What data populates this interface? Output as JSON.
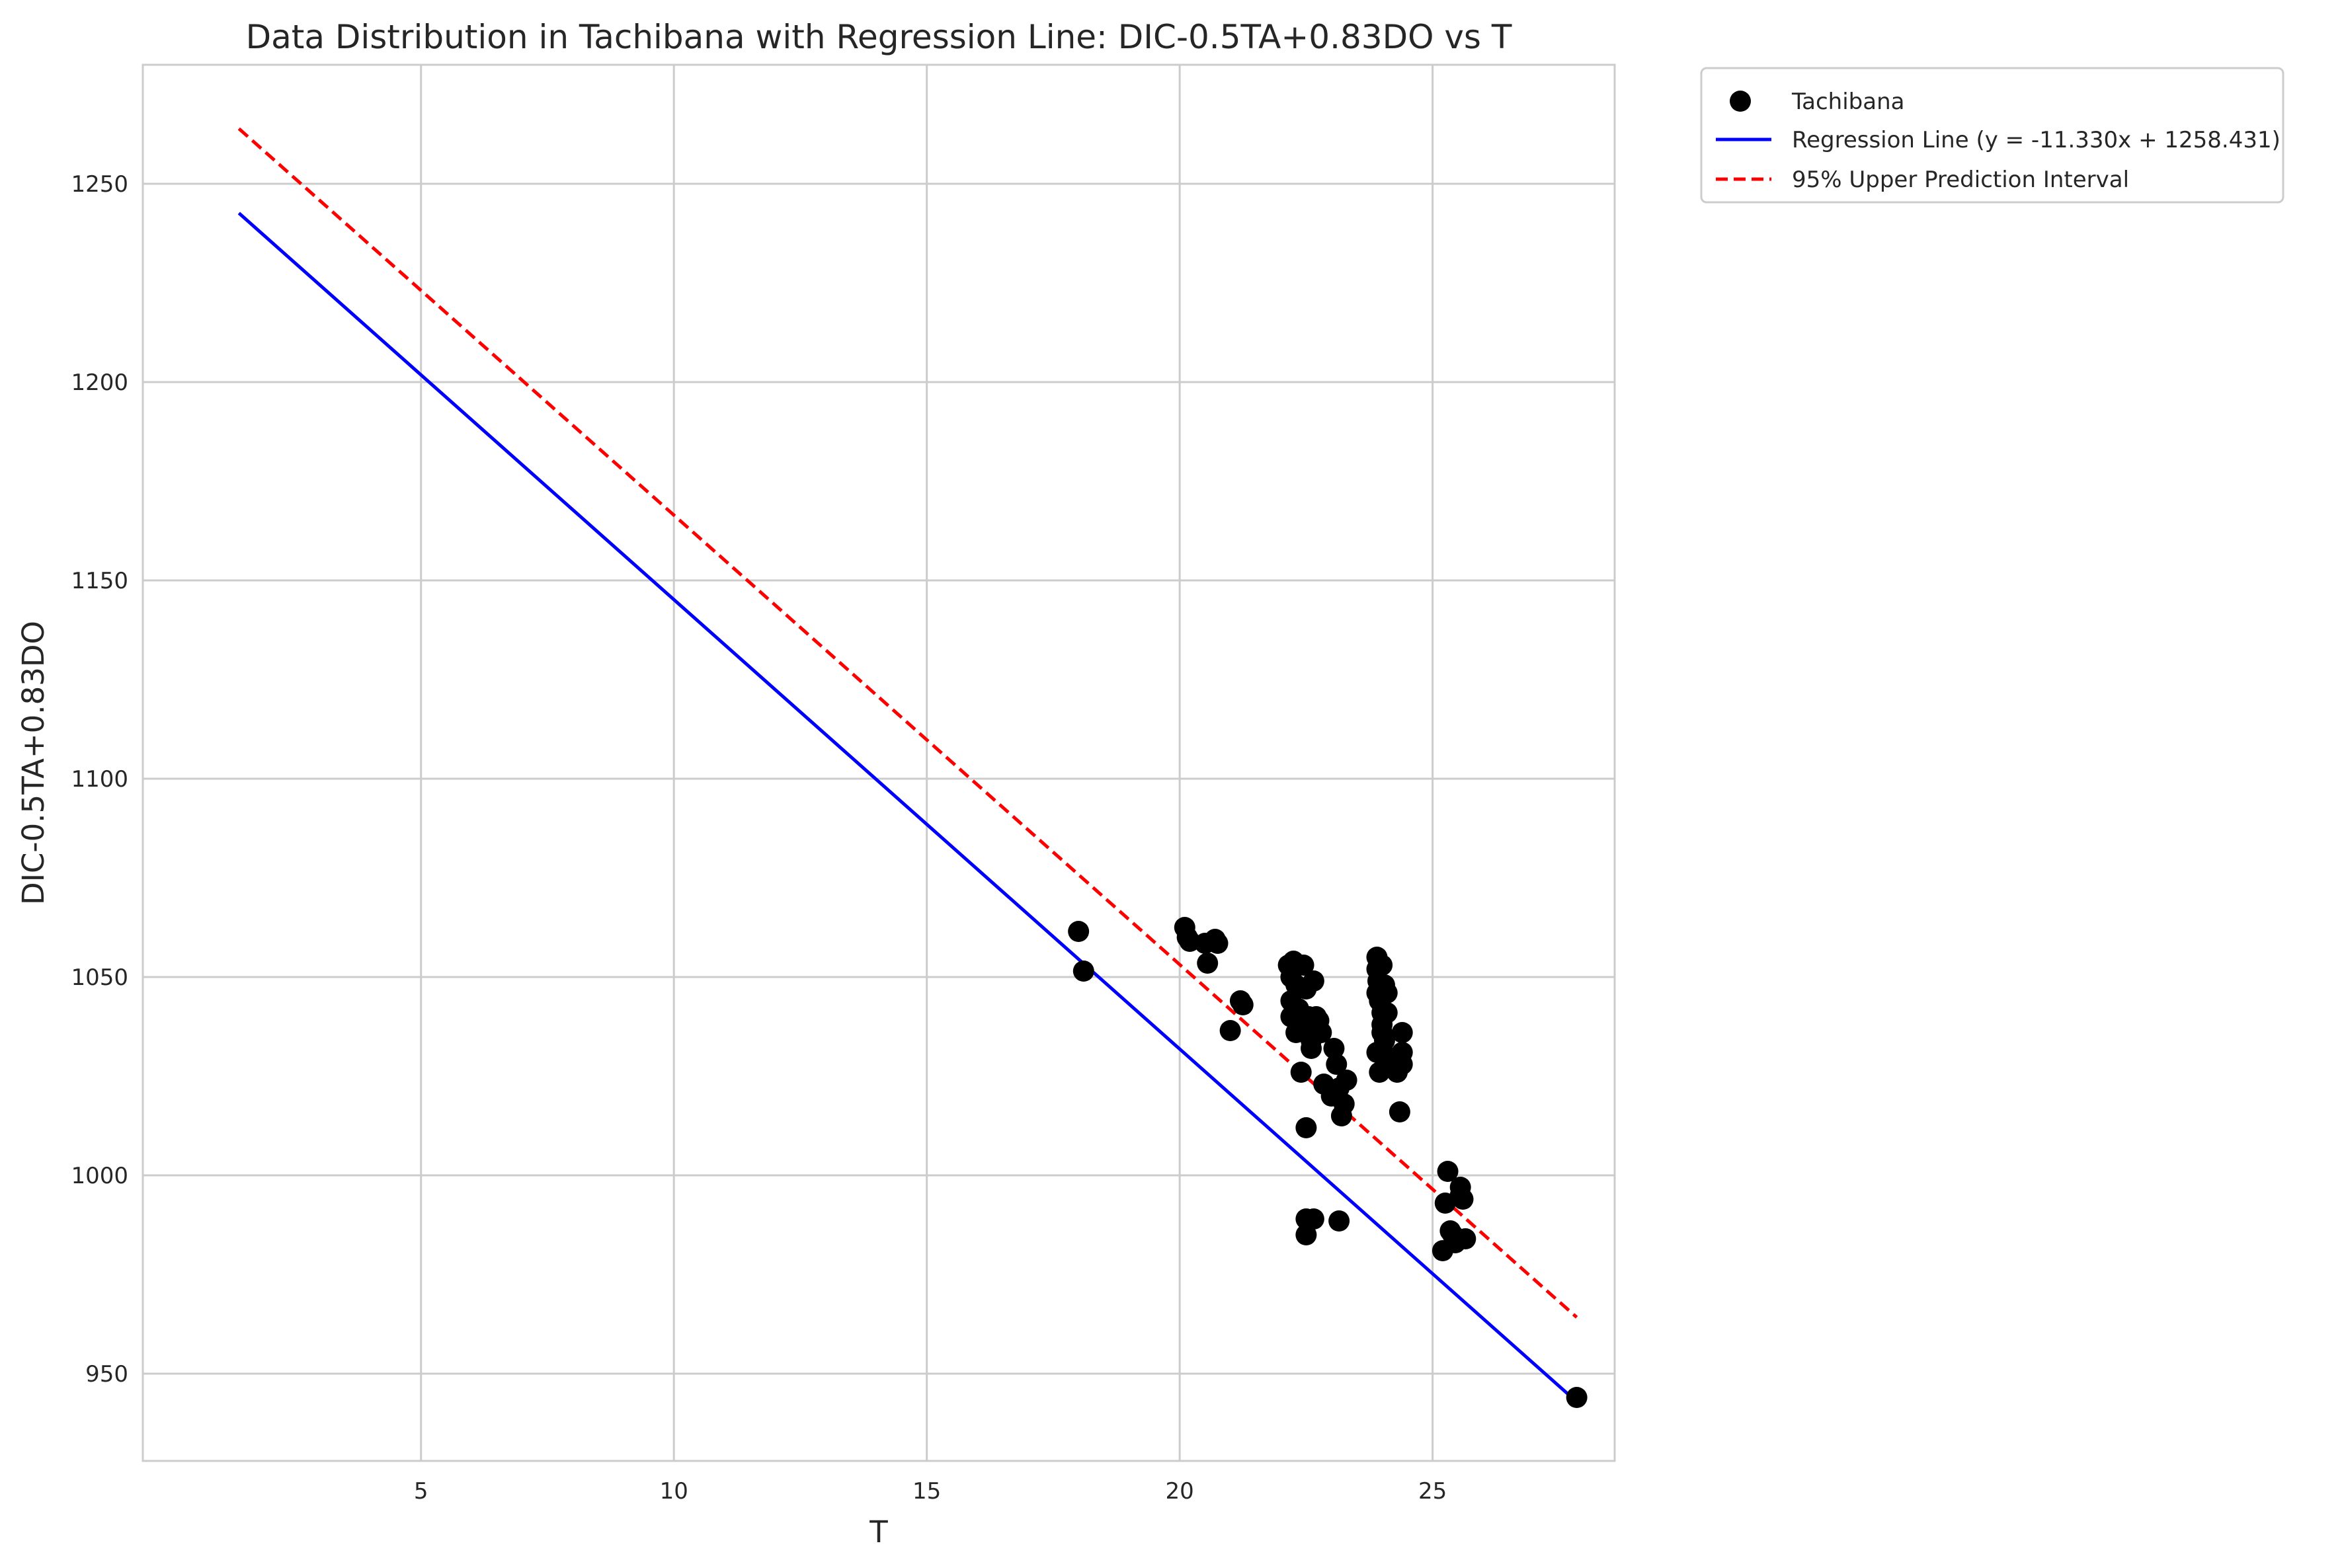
{
  "chart_data": {
    "type": "scatter",
    "title": "Data Distribution in Tachibana with Regression Line: DIC-0.5TA+0.83DO vs T",
    "xlabel": "T",
    "ylabel": "DIC-0.5TA+0.83DO",
    "xlim": [
      -0.5,
      28.6
    ],
    "ylim": [
      928,
      1280
    ],
    "xticks": [
      5,
      10,
      15,
      20,
      25
    ],
    "yticks": [
      950,
      1000,
      1050,
      1100,
      1150,
      1200,
      1250
    ],
    "grid": true,
    "legend_position": "outside-top-right",
    "legend": [
      {
        "label": "Tachibana",
        "kind": "marker",
        "color": "#000000"
      },
      {
        "label": "Regression Line (y = -11.330x + 1258.431)",
        "kind": "line",
        "color": "#0000ff"
      },
      {
        "label": "95% Upper Prediction Interval",
        "kind": "dashed",
        "color": "#ff0000"
      }
    ],
    "series": [
      {
        "name": "Tachibana",
        "kind": "scatter",
        "color": "#000000",
        "points": [
          [
            18.0,
            1061.5
          ],
          [
            18.1,
            1051.5
          ],
          [
            20.1,
            1062.5
          ],
          [
            20.15,
            1060
          ],
          [
            20.2,
            1059
          ],
          [
            20.5,
            1058.5
          ],
          [
            20.55,
            1053.5
          ],
          [
            20.7,
            1059.5
          ],
          [
            20.75,
            1058.5
          ],
          [
            21.0,
            1036.5
          ],
          [
            21.2,
            1044
          ],
          [
            21.25,
            1043
          ],
          [
            22.15,
            1053
          ],
          [
            22.2,
            1050
          ],
          [
            22.25,
            1054
          ],
          [
            22.2,
            1044
          ],
          [
            22.2,
            1040
          ],
          [
            22.3,
            1048
          ],
          [
            22.35,
            1042
          ],
          [
            22.3,
            1036
          ],
          [
            22.4,
            1026
          ],
          [
            22.45,
            1053
          ],
          [
            22.5,
            1047
          ],
          [
            22.45,
            1038
          ],
          [
            22.5,
            1012
          ],
          [
            22.5,
            989
          ],
          [
            22.5,
            985
          ],
          [
            22.55,
            1040
          ],
          [
            22.6,
            1034
          ],
          [
            22.6,
            1032
          ],
          [
            22.65,
            1049
          ],
          [
            22.7,
            1040
          ],
          [
            22.7,
            1036
          ],
          [
            22.65,
            989
          ],
          [
            22.75,
            1039
          ],
          [
            22.8,
            1036
          ],
          [
            22.85,
            1023
          ],
          [
            23.0,
            1020
          ],
          [
            23.05,
            1032
          ],
          [
            23.1,
            1028
          ],
          [
            23.15,
            1022
          ],
          [
            23.2,
            1015
          ],
          [
            23.25,
            1018
          ],
          [
            23.3,
            1024
          ],
          [
            23.15,
            988.5
          ],
          [
            23.9,
            1055
          ],
          [
            23.9,
            1052
          ],
          [
            23.92,
            1049
          ],
          [
            23.9,
            1046
          ],
          [
            23.95,
            1044
          ],
          [
            23.9,
            1031
          ],
          [
            23.95,
            1026
          ],
          [
            24.0,
            1053
          ],
          [
            24.0,
            1041
          ],
          [
            24.0,
            1038
          ],
          [
            24.0,
            1036
          ],
          [
            24.05,
            1048
          ],
          [
            24.05,
            1034
          ],
          [
            24.1,
            1046
          ],
          [
            24.1,
            1041
          ],
          [
            24.1,
            1030
          ],
          [
            24.3,
            1026
          ],
          [
            24.3,
            1028
          ],
          [
            24.35,
            1016
          ],
          [
            24.4,
            1036
          ],
          [
            24.4,
            1031
          ],
          [
            24.4,
            1028
          ],
          [
            25.2,
            981
          ],
          [
            25.25,
            993
          ],
          [
            25.3,
            1001
          ],
          [
            25.35,
            986
          ],
          [
            25.4,
            985
          ],
          [
            25.45,
            983
          ],
          [
            25.55,
            997
          ],
          [
            25.55,
            995
          ],
          [
            25.6,
            994
          ],
          [
            25.65,
            984
          ],
          [
            27.85,
            944
          ]
        ]
      },
      {
        "name": "Regression Line (y = -11.330x + 1258.431)",
        "kind": "line",
        "color": "#0000ff",
        "x": [
          1.4,
          27.85
        ],
        "y": [
          1242.6,
          942.9
        ]
      },
      {
        "name": "95% Upper Prediction Interval",
        "kind": "dashed-line",
        "color": "#ff0000",
        "x": [
          1.4,
          27.85
        ],
        "y": [
          1263.9,
          964.2
        ]
      }
    ]
  }
}
